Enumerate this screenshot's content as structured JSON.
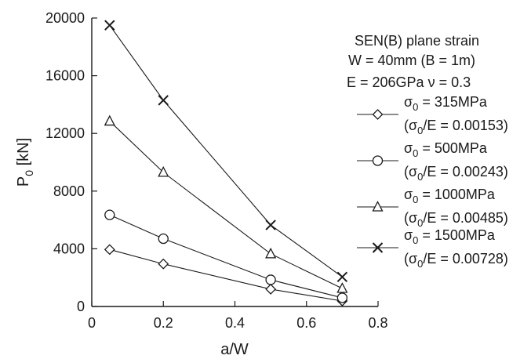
{
  "chart_data": {
    "type": "line",
    "xlabel": "a/W",
    "ylabel": "P",
    "ylabel_sub": "0",
    "ylabel_unit": " [kN]",
    "xlim": [
      0,
      0.8
    ],
    "ylim": [
      0,
      20000
    ],
    "x_ticks": [
      0,
      0.2,
      0.4,
      0.6,
      0.8
    ],
    "x_tick_labels": [
      "0",
      "0.2",
      "0.4",
      "0.6",
      "0.8"
    ],
    "y_ticks": [
      0,
      4000,
      8000,
      12000,
      16000,
      20000
    ],
    "y_tick_labels": [
      "0",
      "4000",
      "8000",
      "12000",
      "16000",
      "20000"
    ],
    "grid": false,
    "legend_position": "right",
    "annotations": [
      "SEN(B) plane strain",
      "W = 40mm  (B = 1m)",
      "E = 206GPa  ν = 0.3"
    ],
    "series": [
      {
        "name": "σ₀ = 315MPa",
        "lab1": "= 315MPa",
        "lab2": "/E = 0.00153)",
        "marker": "diamond",
        "x": [
          0.05,
          0.2,
          0.5,
          0.7
        ],
        "y": [
          3950,
          2950,
          1200,
          380
        ]
      },
      {
        "name": "σ₀ = 500MPa",
        "lab1": "= 500MPa",
        "lab2": "/E = 0.00243)",
        "marker": "circle",
        "x": [
          0.05,
          0.2,
          0.5,
          0.7
        ],
        "y": [
          6350,
          4700,
          1850,
          600
        ]
      },
      {
        "name": "σ₀ = 1000MPa",
        "lab1": "= 1000MPa",
        "lab2": "/E = 0.00485)",
        "marker": "triangle",
        "x": [
          0.05,
          0.2,
          0.5,
          0.7
        ],
        "y": [
          12850,
          9300,
          3650,
          1250
        ]
      },
      {
        "name": "σ₀ = 1500MPa",
        "lab1": "= 1500MPa",
        "lab2": "/E = 0.00728)",
        "marker": "x",
        "x": [
          0.05,
          0.2,
          0.5,
          0.7
        ],
        "y": [
          19500,
          14300,
          5650,
          2050
        ]
      }
    ],
    "legend_symbol": "σ",
    "legend_sub": "0",
    "legend_paren": "("
  }
}
